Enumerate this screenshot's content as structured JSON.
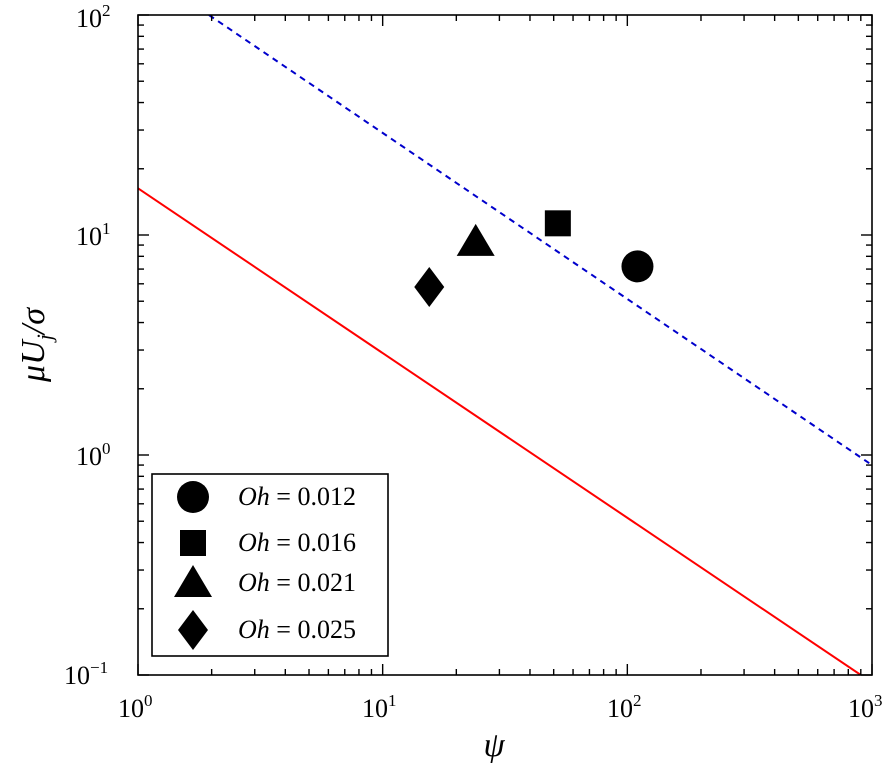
{
  "chart_data": {
    "type": "scatter",
    "xscale": "log",
    "yscale": "log",
    "xlim": [
      1,
      1000
    ],
    "ylim": [
      0.1,
      100
    ],
    "xlabel": "ψ",
    "ylabel": "μU_j/σ",
    "ylabel_parts": {
      "a": "μU",
      "sub": "j",
      "b": "/σ"
    },
    "grid": false,
    "legend_position": "bottom-left",
    "x_ticks": [
      {
        "base": "10",
        "exp": "0"
      },
      {
        "base": "10",
        "exp": "1"
      },
      {
        "base": "10",
        "exp": "2"
      },
      {
        "base": "10",
        "exp": "3"
      }
    ],
    "y_ticks": [
      {
        "base": "10",
        "exp": "−1"
      },
      {
        "base": "10",
        "exp": "0"
      },
      {
        "base": "10",
        "exp": "1"
      },
      {
        "base": "10",
        "exp": "2"
      }
    ],
    "series": [
      {
        "name_var": "Oh",
        "name_val": " = 0.012",
        "marker": "circle",
        "x": 110,
        "y": 7.2
      },
      {
        "name_var": "Oh",
        "name_val": " = 0.016",
        "marker": "square",
        "x": 52,
        "y": 11.3
      },
      {
        "name_var": "Oh",
        "name_val": " = 0.021",
        "marker": "triangle",
        "x": 24,
        "y": 9.3
      },
      {
        "name_var": "Oh",
        "name_val": " = 0.025",
        "marker": "diamond",
        "x": 15.5,
        "y": 5.8
      }
    ],
    "lines": [
      {
        "style": "solid",
        "color": "#ff0000",
        "points": [
          [
            1,
            16.3
          ],
          [
            900,
            0.1
          ]
        ]
      },
      {
        "style": "dashed",
        "color": "#0000cc",
        "points": [
          [
            1.95,
            100
          ],
          [
            1000,
            0.9
          ]
        ]
      }
    ]
  }
}
